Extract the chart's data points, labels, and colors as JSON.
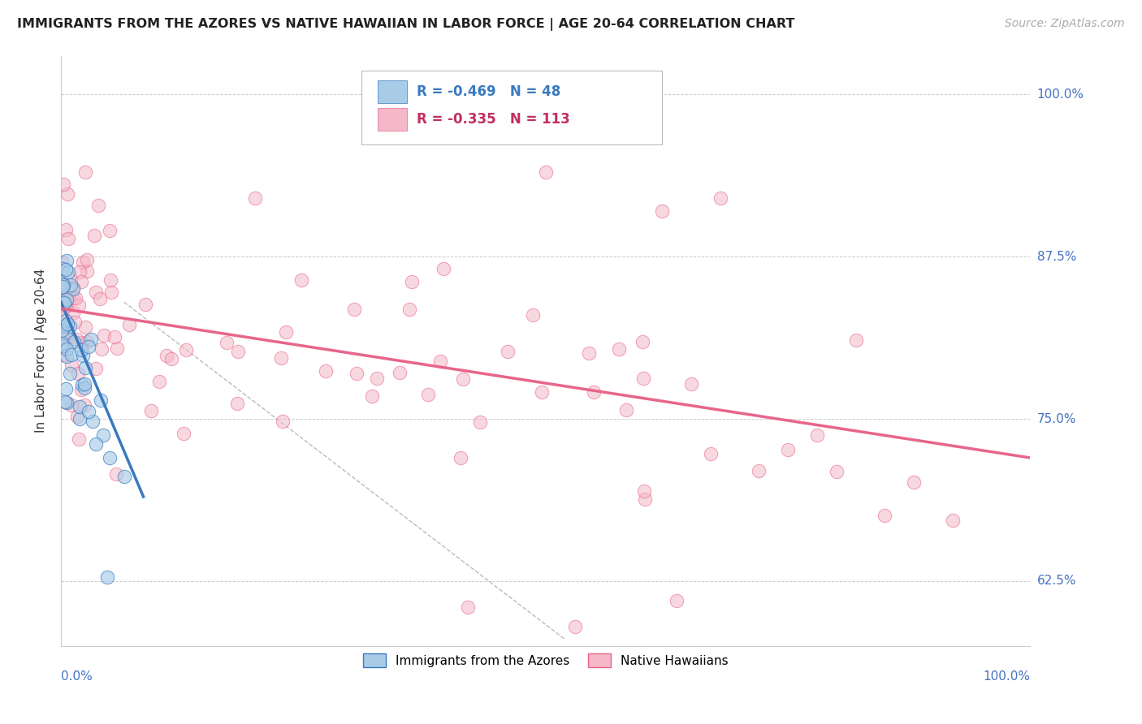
{
  "title": "IMMIGRANTS FROM THE AZORES VS NATIVE HAWAIIAN IN LABOR FORCE | AGE 20-64 CORRELATION CHART",
  "source": "Source: ZipAtlas.com",
  "ylabel": "In Labor Force | Age 20-64",
  "yticks": [
    0.625,
    0.75,
    0.875,
    1.0
  ],
  "ytick_labels": [
    "62.5%",
    "75.0%",
    "87.5%",
    "100.0%"
  ],
  "legend_label1": "Immigrants from the Azores",
  "legend_label2": "Native Hawaiians",
  "R1": -0.469,
  "N1": 48,
  "R2": -0.335,
  "N2": 113,
  "color_blue": "#a8cce8",
  "color_pink": "#f4b8c8",
  "color_blue_line": "#3a7abf",
  "color_pink_line": "#e8658a",
  "xlim": [
    0.0,
    1.0
  ],
  "ylim": [
    0.575,
    1.03
  ],
  "blue_trend_x": [
    0.0,
    0.085
  ],
  "blue_trend_y": [
    0.84,
    0.69
  ],
  "pink_trend_x": [
    0.0,
    1.0
  ],
  "pink_trend_y": [
    0.835,
    0.72
  ],
  "dash_line_x": [
    0.065,
    0.52
  ],
  "dash_line_y": [
    0.84,
    0.58
  ]
}
